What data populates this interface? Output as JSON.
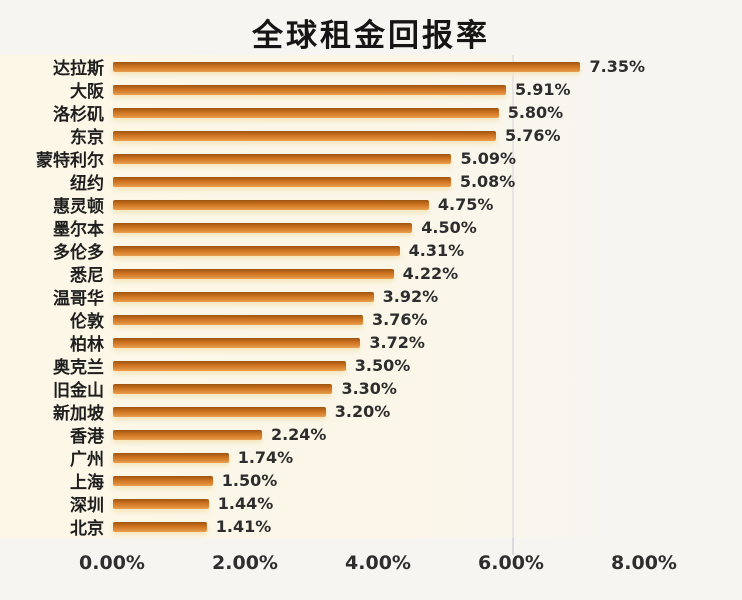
{
  "page": {
    "background_color": "#f7f5f1",
    "plot_band_color": "#fcf7e6"
  },
  "chart_data": {
    "type": "bar",
    "orientation": "horizontal",
    "title": "全球租金回报率",
    "categories": [
      "达拉斯",
      "大阪",
      "洛杉矶",
      "东京",
      "蒙特利尔",
      "纽约",
      "惠灵顿",
      "墨尔本",
      "多伦多",
      "悉尼",
      "温哥华",
      "伦敦",
      "柏林",
      "奥克兰",
      "旧金山",
      "新加坡",
      "香港",
      "广州",
      "上海",
      "深圳",
      "北京"
    ],
    "values": [
      7.35,
      5.91,
      5.8,
      5.76,
      5.09,
      5.08,
      4.75,
      4.5,
      4.31,
      4.22,
      3.92,
      3.76,
      3.72,
      3.5,
      3.3,
      3.2,
      2.24,
      1.74,
      1.5,
      1.44,
      1.41
    ],
    "value_labels": [
      "7.35%",
      "5.91%",
      "5.80%",
      "5.76%",
      "5.09%",
      "5.08%",
      "4.75%",
      "4.50%",
      "4.31%",
      "4.22%",
      "3.92%",
      "3.76%",
      "3.72%",
      "3.50%",
      "3.30%",
      "3.20%",
      "2.24%",
      "1.74%",
      "1.50%",
      "1.44%",
      "1.41%"
    ],
    "xlabel": "",
    "ylabel": "",
    "xlim": [
      0,
      8
    ],
    "xticks": [
      "0.00%",
      "2.00%",
      "4.00%",
      "6.00%",
      "8.00%"
    ],
    "gridline_at_percent": 6,
    "bar_color": "#d8812e",
    "legend": "none"
  }
}
